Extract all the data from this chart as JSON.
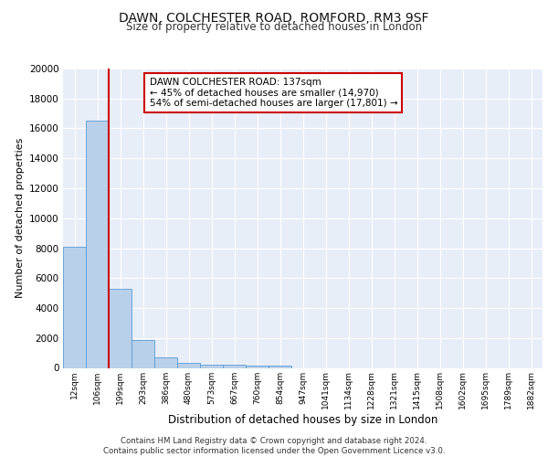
{
  "title1": "DAWN, COLCHESTER ROAD, ROMFORD, RM3 9SF",
  "title2": "Size of property relative to detached houses in London",
  "xlabel": "Distribution of detached houses by size in London",
  "ylabel": "Number of detached properties",
  "categories": [
    "12sqm",
    "106sqm",
    "199sqm",
    "293sqm",
    "386sqm",
    "480sqm",
    "573sqm",
    "667sqm",
    "760sqm",
    "854sqm",
    "947sqm",
    "1041sqm",
    "1134sqm",
    "1228sqm",
    "1321sqm",
    "1415sqm",
    "1508sqm",
    "1602sqm",
    "1695sqm",
    "1789sqm",
    "1882sqm"
  ],
  "bar_heights": [
    8100,
    16500,
    5300,
    1850,
    700,
    320,
    220,
    200,
    170,
    130,
    0,
    0,
    0,
    0,
    0,
    0,
    0,
    0,
    0,
    0,
    0
  ],
  "bar_color": "#b8d0ea",
  "bar_edge_color": "#5b9bd5",
  "red_line_color": "#cc0000",
  "annotation_text": "DAWN COLCHESTER ROAD: 137sqm\n← 45% of detached houses are smaller (14,970)\n54% of semi-detached houses are larger (17,801) →",
  "annotation_box_facecolor": "#ffffff",
  "annotation_box_edgecolor": "#cc0000",
  "ylim": [
    0,
    20000
  ],
  "yticks": [
    0,
    2000,
    4000,
    6000,
    8000,
    10000,
    12000,
    14000,
    16000,
    18000,
    20000
  ],
  "plot_bg_color": "#e8eef8",
  "grid_color": "#ffffff",
  "fig_bg_color": "#ffffff",
  "footer_line1": "Contains HM Land Registry data © Crown copyright and database right 2024.",
  "footer_line2": "Contains public sector information licensed under the Open Government Licence v3.0."
}
